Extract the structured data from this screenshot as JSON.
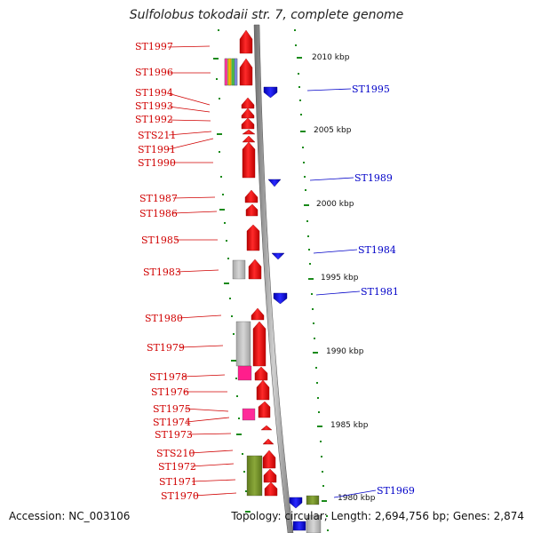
{
  "title": "Sulfolobus tokodaii str. 7, complete genome",
  "footer": {
    "accession": "Accession: NC_003106",
    "summary": "Topology: circular; Length: 2,694,756 bp; Genes: 2,874"
  },
  "colors": {
    "forward_gene": "#ff0000",
    "reverse_gene": "#0000ff",
    "label_forward": "#d00000",
    "label_reverse": "#0000c8",
    "tick": "#1a8a1a"
  },
  "kbp_markers": [
    {
      "label": "2010 kbp"
    },
    {
      "label": "2005 kbp"
    },
    {
      "label": "2000 kbp"
    },
    {
      "label": "1995 kbp"
    },
    {
      "label": "1990 kbp"
    },
    {
      "label": "1985 kbp"
    },
    {
      "label": "1980 kbp"
    }
  ],
  "forward_labels": [
    "ST1997",
    "ST1996",
    "ST1994",
    "ST1993",
    "ST1992",
    "STS211",
    "ST1991",
    "ST1990",
    "ST1987",
    "ST1986",
    "ST1985",
    "ST1983",
    "ST1980",
    "ST1979",
    "ST1978",
    "ST1976",
    "ST1975",
    "ST1974",
    "ST1973",
    "STS210",
    "ST1972",
    "ST1971",
    "ST1970"
  ],
  "reverse_labels": [
    "ST1995",
    "ST1989",
    "ST1984",
    "ST1981",
    "ST1969"
  ]
}
